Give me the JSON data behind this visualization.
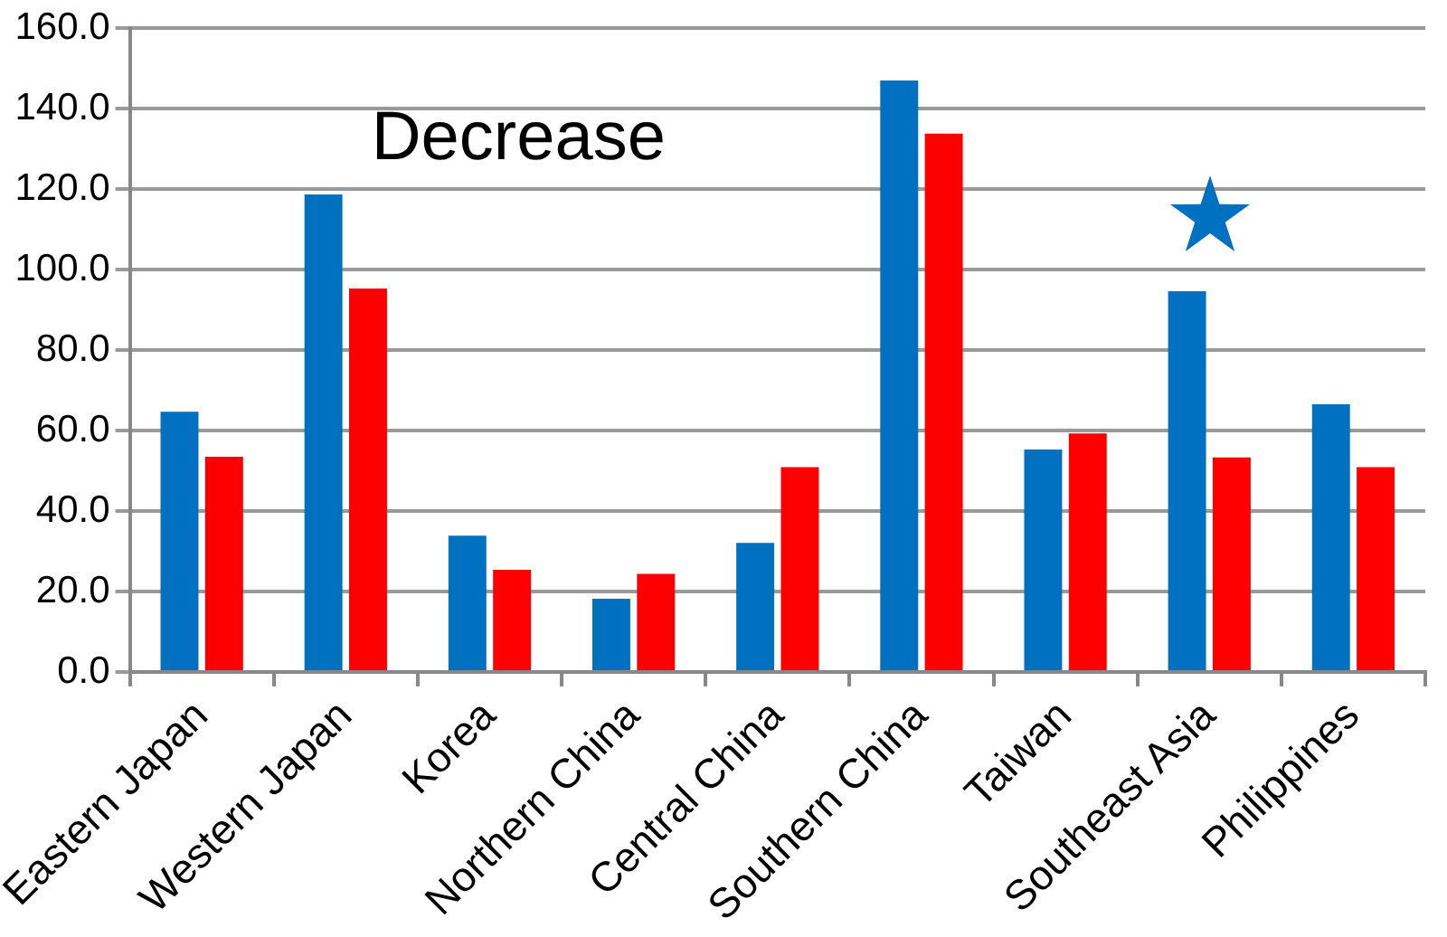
{
  "chart_data": {
    "type": "bar",
    "categories": [
      "Eastern Japan",
      "Western Japan",
      "Korea",
      "Northern China",
      "Central China",
      "Southern China",
      "Taiwan",
      "Southeast Asia",
      "Philippines"
    ],
    "series": [
      {
        "color": "#0070c0",
        "values": [
          64.7,
          118.7,
          33.9,
          18.2,
          32.1,
          147.0,
          55.3,
          94.6,
          66.5
        ]
      },
      {
        "color": "#ff0000",
        "values": [
          53.5,
          95.3,
          25.4,
          24.4,
          50.9,
          133.8,
          59.3,
          53.3,
          50.9
        ]
      }
    ],
    "ylim": [
      0,
      160
    ],
    "yticks": [
      {
        "value": 0,
        "label": "0.0"
      },
      {
        "value": 20,
        "label": "20.0"
      },
      {
        "value": 40,
        "label": "40.0"
      },
      {
        "value": 60,
        "label": "60.0"
      },
      {
        "value": 80,
        "label": "80.0"
      },
      {
        "value": 100,
        "label": "100.0"
      },
      {
        "value": 120,
        "label": "120.0"
      },
      {
        "value": 140,
        "label": "140.0"
      },
      {
        "value": 160,
        "label": "160.0"
      }
    ],
    "grid": "y",
    "legend": false,
    "annotations": [
      "Decrease"
    ]
  }
}
